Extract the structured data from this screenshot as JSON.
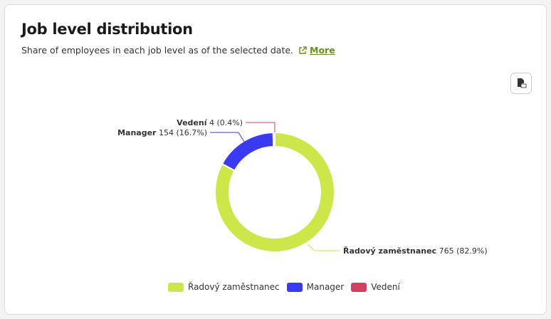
{
  "title": "Job level distribution",
  "subtitle": "Share of employees in each job level as of the selected date.",
  "more_label": "More",
  "download_icon": "jpg-download-icon",
  "chart_data": {
    "type": "pie",
    "variant": "donut",
    "title": "Job level distribution",
    "series": [
      {
        "name": "Řadový zaměstnanec",
        "value": 765,
        "percent": "82.9%",
        "label_value": "765 (82.9%)",
        "color": "#cde64a"
      },
      {
        "name": "Manager",
        "value": 154,
        "percent": "16.7%",
        "label_value": "154 (16.7%)",
        "color": "#3a3af0"
      },
      {
        "name": "Vedení",
        "value": 4,
        "percent": "0.4%",
        "label_value": "4 (0.4%)",
        "color": "#d4405f"
      }
    ],
    "legend_position": "bottom"
  }
}
